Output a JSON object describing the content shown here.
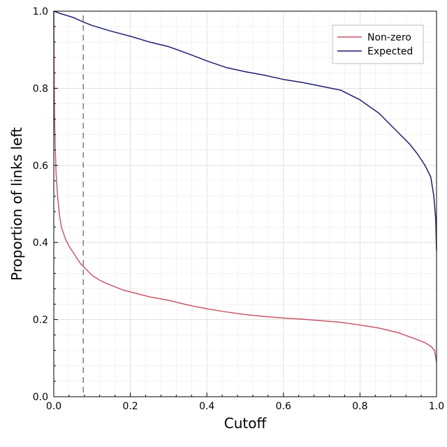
{
  "chart_data": {
    "type": "line",
    "title": "",
    "xlabel": "Cutoff",
    "ylabel": "Proportion of links left",
    "xlim": [
      0,
      1
    ],
    "ylim": [
      0,
      1
    ],
    "x_ticks": [
      "0.0",
      "0.2",
      "0.4",
      "0.6",
      "0.8",
      "1.0"
    ],
    "y_ticks": [
      "0.0",
      "0.2",
      "0.4",
      "0.6",
      "0.8",
      "1.0"
    ],
    "grid": true,
    "legend_position": "top-right",
    "reference_line": {
      "type": "vertical",
      "x": 0.077,
      "style": "dashed",
      "color": "#808080"
    },
    "series": [
      {
        "name": "Non-zero",
        "color": "#c8576a",
        "points": [
          [
            0.0,
            1.0
          ],
          [
            0.001,
            0.82
          ],
          [
            0.002,
            0.72
          ],
          [
            0.004,
            0.64
          ],
          [
            0.006,
            0.58
          ],
          [
            0.01,
            0.52
          ],
          [
            0.015,
            0.47
          ],
          [
            0.02,
            0.44
          ],
          [
            0.03,
            0.41
          ],
          [
            0.04,
            0.39
          ],
          [
            0.05,
            0.375
          ],
          [
            0.06,
            0.36
          ],
          [
            0.07,
            0.345
          ],
          [
            0.08,
            0.335
          ],
          [
            0.1,
            0.315
          ],
          [
            0.12,
            0.302
          ],
          [
            0.14,
            0.293
          ],
          [
            0.16,
            0.285
          ],
          [
            0.18,
            0.277
          ],
          [
            0.2,
            0.272
          ],
          [
            0.25,
            0.259
          ],
          [
            0.3,
            0.25
          ],
          [
            0.35,
            0.238
          ],
          [
            0.4,
            0.228
          ],
          [
            0.45,
            0.22
          ],
          [
            0.5,
            0.213
          ],
          [
            0.55,
            0.208
          ],
          [
            0.6,
            0.204
          ],
          [
            0.65,
            0.201
          ],
          [
            0.7,
            0.197
          ],
          [
            0.75,
            0.193
          ],
          [
            0.8,
            0.186
          ],
          [
            0.85,
            0.178
          ],
          [
            0.9,
            0.166
          ],
          [
            0.95,
            0.148
          ],
          [
            0.97,
            0.14
          ],
          [
            0.985,
            0.131
          ],
          [
            0.995,
            0.12
          ],
          [
            1.0,
            0.09
          ]
        ]
      },
      {
        "name": "Expected",
        "color": "#1e1e72",
        "points": [
          [
            0.0,
            1.0
          ],
          [
            0.02,
            0.993
          ],
          [
            0.05,
            0.984
          ],
          [
            0.077,
            0.972
          ],
          [
            0.1,
            0.963
          ],
          [
            0.15,
            0.948
          ],
          [
            0.2,
            0.935
          ],
          [
            0.25,
            0.92
          ],
          [
            0.3,
            0.908
          ],
          [
            0.35,
            0.89
          ],
          [
            0.4,
            0.871
          ],
          [
            0.45,
            0.854
          ],
          [
            0.5,
            0.843
          ],
          [
            0.55,
            0.834
          ],
          [
            0.6,
            0.823
          ],
          [
            0.65,
            0.815
          ],
          [
            0.7,
            0.805
          ],
          [
            0.75,
            0.795
          ],
          [
            0.8,
            0.77
          ],
          [
            0.85,
            0.735
          ],
          [
            0.9,
            0.685
          ],
          [
            0.93,
            0.655
          ],
          [
            0.95,
            0.63
          ],
          [
            0.97,
            0.6
          ],
          [
            0.985,
            0.57
          ],
          [
            0.993,
            0.52
          ],
          [
            0.998,
            0.46
          ],
          [
            1.0,
            0.38
          ]
        ]
      }
    ]
  }
}
